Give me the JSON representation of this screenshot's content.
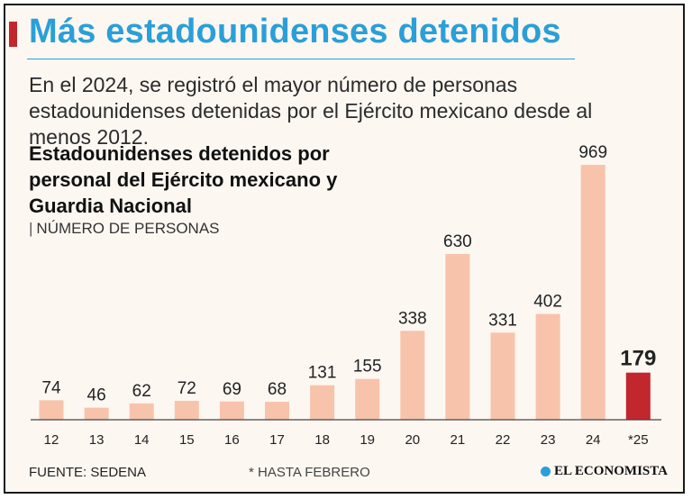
{
  "header": {
    "title": "Más estadounidenses detenidos",
    "subtitle": "En el 2024, se registró el mayor número de personas estadounidenses detenidas por el Ejército mexicano desde al menos 2012."
  },
  "chart_title": "Estadounidenses detenidos por personal del Ejército mexicano y Guardia Nacional",
  "chart_unit": "NÚMERO DE PERSONAS",
  "chart_data": {
    "type": "bar",
    "title": "Estadounidenses detenidos por personal del Ejército mexicano y Guardia Nacional",
    "ylabel": "NÚMERO DE PERSONAS",
    "xlabel": "",
    "categories": [
      "12",
      "13",
      "14",
      "15",
      "16",
      "17",
      "18",
      "19",
      "20",
      "21",
      "22",
      "23",
      "24",
      "*25"
    ],
    "values": [
      74,
      46,
      62,
      72,
      69,
      68,
      131,
      155,
      338,
      630,
      331,
      402,
      969,
      179
    ],
    "highlight_index": 13,
    "ylim": [
      0,
      1000
    ],
    "grid": false,
    "colors": {
      "default": "#f8c3ab",
      "highlight": "#c1272d",
      "axis": "#444444",
      "label": "#222222"
    }
  },
  "footer": {
    "source": "FUENTE: SEDENA",
    "note": "* HASTA FEBRERO",
    "brand": "EL ECONOMISTA"
  },
  "colors": {
    "accent": "#c1272d",
    "title": "#2a9fd8",
    "background": "#fdf7f2"
  }
}
